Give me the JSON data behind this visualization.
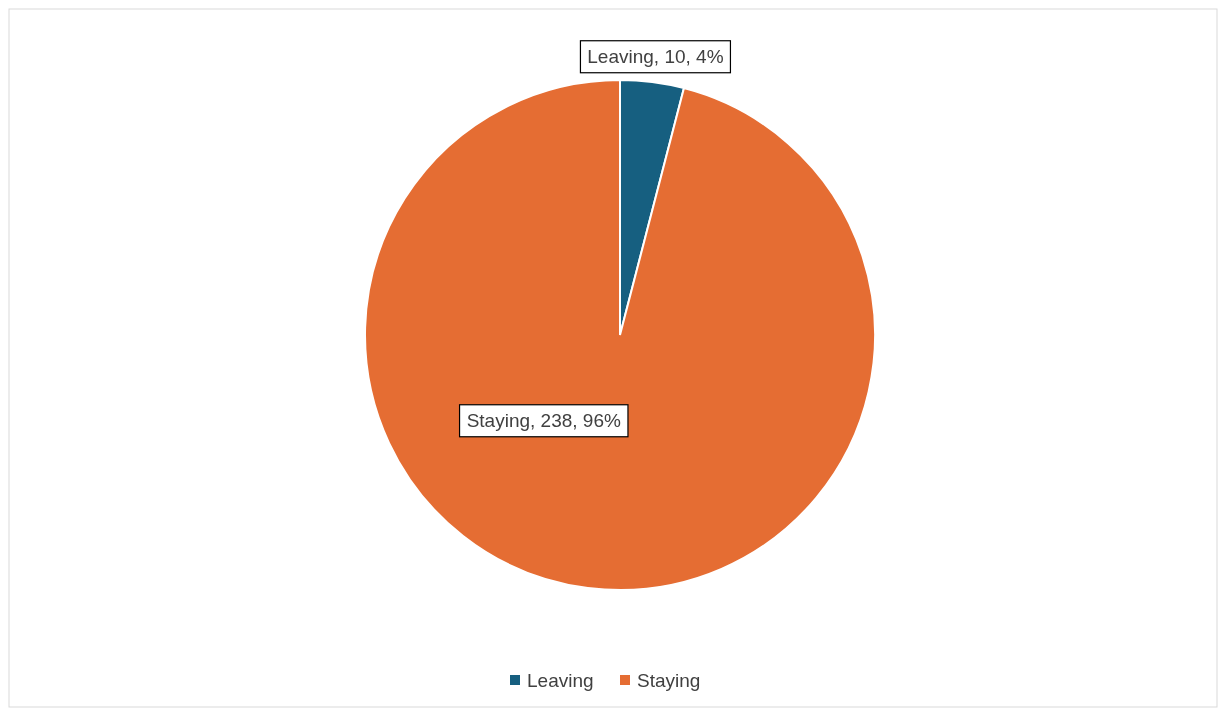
{
  "chart_data": {
    "type": "pie",
    "categories": [
      "Leaving",
      "Staying"
    ],
    "values": [
      10,
      238
    ],
    "colors": [
      "#165f80",
      "#e56d33"
    ],
    "value_labels": [
      "Leaving, 10, 4%",
      "Staying, 238, 96%"
    ],
    "legend": "bottom"
  }
}
